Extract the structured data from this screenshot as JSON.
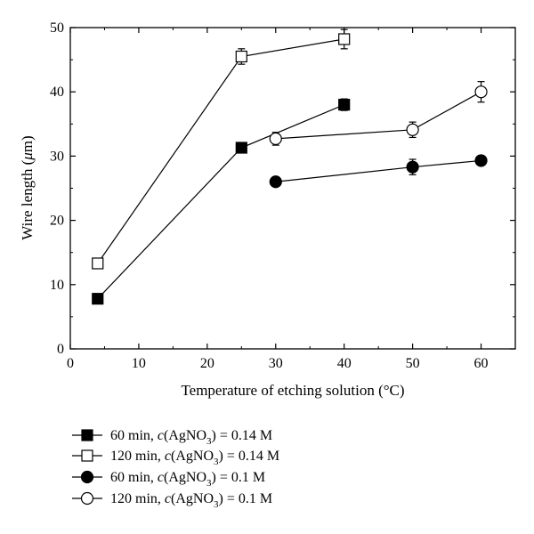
{
  "chart_data": {
    "type": "line",
    "xlabel": "Temperature of etching solution (°C)",
    "ylabel_prefix": "Wire length (",
    "ylabel_unit": "μ",
    "ylabel_suffix": "m)",
    "xlim": [
      0,
      65
    ],
    "ylim": [
      0,
      50
    ],
    "xticks": [
      0,
      10,
      20,
      30,
      40,
      50,
      60
    ],
    "yticks": [
      0,
      10,
      20,
      30,
      40,
      50
    ],
    "grid": false,
    "legend_position": "below plot",
    "series": [
      {
        "name": "60 min, c(AgNO3) = 0.14 M",
        "legend": {
          "time": "60 min, ",
          "c": "c",
          "open": "(AgNO",
          "sub": "3",
          "close": ") = 0.14 M"
        },
        "marker": "square",
        "fill": "filled",
        "points": [
          {
            "x": 4,
            "y": 7.8,
            "err": 0
          },
          {
            "x": 25,
            "y": 31.3,
            "err": 0
          },
          {
            "x": 40,
            "y": 38.0,
            "err": 0.9
          }
        ]
      },
      {
        "name": "120 min, c(AgNO3) = 0.14 M",
        "legend": {
          "time": "120 min, ",
          "c": "c",
          "open": "(AgNO",
          "sub": "3",
          "close": ") = 0.14 M"
        },
        "marker": "square",
        "fill": "open",
        "points": [
          {
            "x": 4,
            "y": 13.3,
            "err": 0.7
          },
          {
            "x": 25,
            "y": 45.5,
            "err": 1.2
          },
          {
            "x": 40,
            "y": 48.2,
            "err": 1.5
          }
        ]
      },
      {
        "name": "60 min, c(AgNO3) = 0.1 M",
        "legend": {
          "time": "60 min, ",
          "c": "c",
          "open": "(AgNO",
          "sub": "3",
          "close": ") = 0.1 M"
        },
        "marker": "circle",
        "fill": "filled",
        "points": [
          {
            "x": 30,
            "y": 26.0,
            "err": 0
          },
          {
            "x": 50,
            "y": 28.3,
            "err": 1.2
          },
          {
            "x": 60,
            "y": 29.3,
            "err": 0.6
          }
        ]
      },
      {
        "name": "120 min, c(AgNO3) = 0.1 M",
        "legend": {
          "time": "120 min, ",
          "c": "c",
          "open": "(AgNO",
          "sub": "3",
          "close": ") = 0.1 M"
        },
        "marker": "circle",
        "fill": "open",
        "points": [
          {
            "x": 30,
            "y": 32.7,
            "err": 1.0
          },
          {
            "x": 50,
            "y": 34.1,
            "err": 1.2
          },
          {
            "x": 60,
            "y": 40.0,
            "err": 1.6
          }
        ]
      }
    ]
  }
}
